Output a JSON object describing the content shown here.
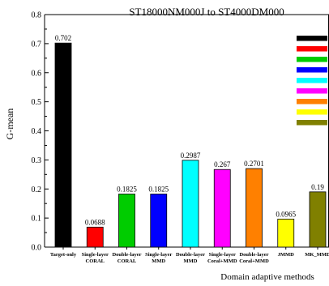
{
  "chart_data": {
    "type": "bar",
    "title": "ST18000NM000J to ST4000DM000",
    "xlabel": "Domain adaptive methods",
    "ylabel": "G-mean",
    "ylim": [
      0,
      0.8
    ],
    "yticks": [
      "0.0",
      "0.1",
      "0.2",
      "0.3",
      "0.4",
      "0.5",
      "0.6",
      "0.7",
      "0.8"
    ],
    "grid": false,
    "legend_placement": "top-right",
    "categories": [
      [
        "Target-only"
      ],
      [
        "Single-layer",
        "CORAL"
      ],
      [
        "Double-layer",
        "CORAL"
      ],
      [
        "Single-layer",
        "MMD"
      ],
      [
        "Double-layer",
        "MMD"
      ],
      [
        "Single-layer",
        "Coral+MMD"
      ],
      [
        "Double-layer",
        "Coral+MMD"
      ],
      [
        "JMMD"
      ],
      [
        "MK_MMD"
      ]
    ],
    "values": [
      0.702,
      0.0688,
      0.1825,
      0.1825,
      0.2987,
      0.267,
      0.2701,
      0.0965,
      0.19
    ],
    "value_labels": [
      "0.702",
      "0.0688",
      "0.1825",
      "0.1825",
      "0.2987",
      "0.267",
      "0.2701",
      "0.0965",
      "0.19"
    ],
    "colors": [
      "#000000",
      "#ff0000",
      "#00cc00",
      "#0000ff",
      "#00ffff",
      "#ff00ff",
      "#ff8000",
      "#ffff00",
      "#808000"
    ]
  }
}
